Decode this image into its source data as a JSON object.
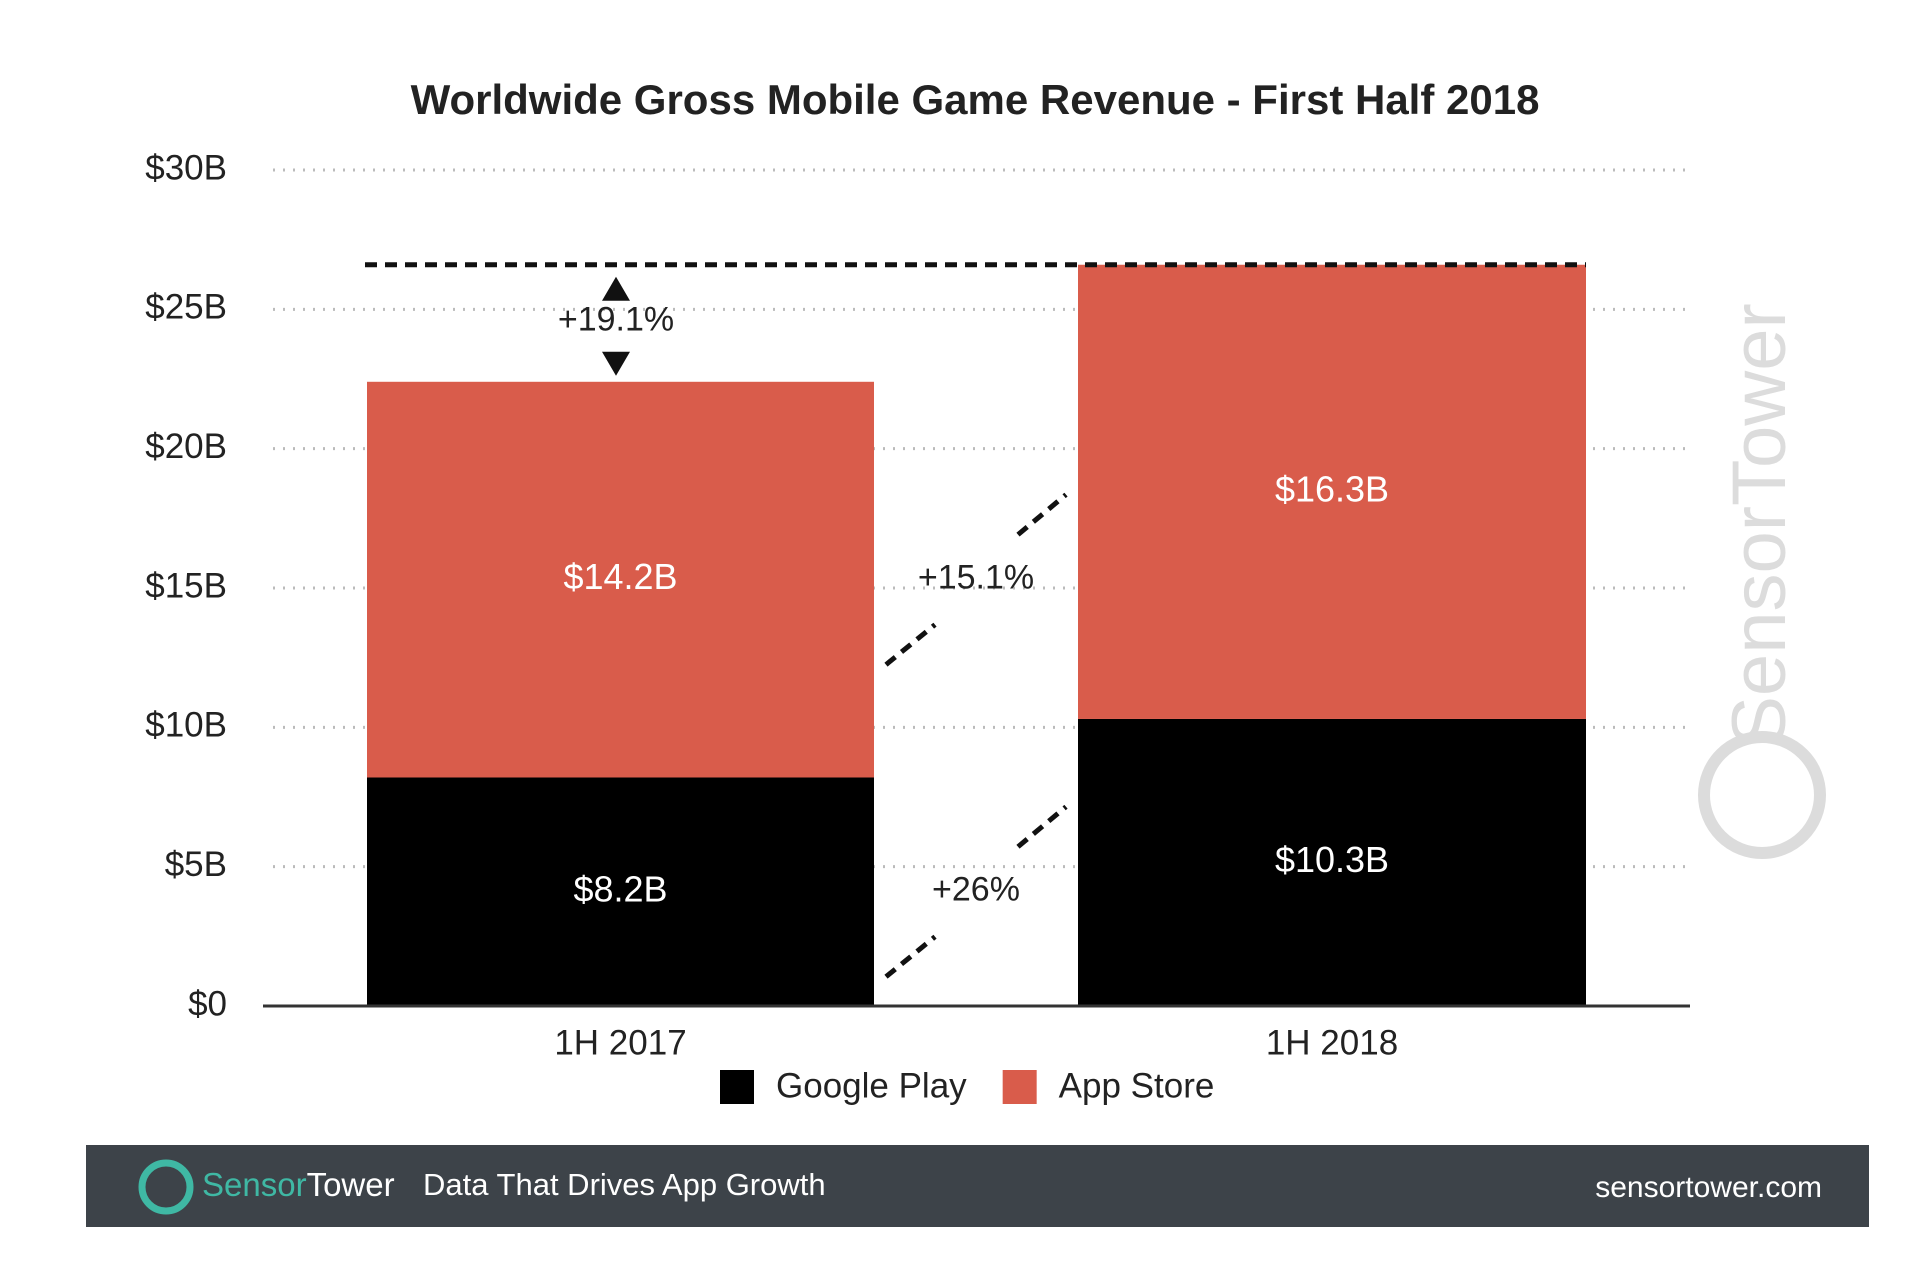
{
  "chart_data": {
    "type": "stacked_bar",
    "title": "Worldwide Gross Mobile Game Revenue - First Half 2018",
    "categories": [
      "1H 2017",
      "1H 2018"
    ],
    "series": [
      {
        "name": "Google Play",
        "color": "#000000",
        "values": [
          8.2,
          10.3
        ],
        "value_labels": [
          "$8.2B",
          "$10.3B"
        ]
      },
      {
        "name": "App Store",
        "color": "#d95c4b",
        "values": [
          14.2,
          16.3
        ],
        "value_labels": [
          "$14.2B",
          "$16.3B"
        ]
      }
    ],
    "ylim": [
      0,
      30
    ],
    "yticks": [
      {
        "value": 0,
        "label": "$0"
      },
      {
        "value": 5,
        "label": "$5B"
      },
      {
        "value": 10,
        "label": "$10B"
      },
      {
        "value": 15,
        "label": "$15B"
      },
      {
        "value": 20,
        "label": "$20B"
      },
      {
        "value": 25,
        "label": "$25B"
      },
      {
        "value": 30,
        "label": "$30B"
      }
    ],
    "grid": true,
    "annotations": [
      "+19.1%",
      "+15.1%",
      "+26%"
    ],
    "watermark": "SensorTower"
  },
  "footer": {
    "brand_first": "Sensor",
    "brand_second": "Tower",
    "tagline": "Data That Drives App Growth",
    "url": "sensortower.com"
  }
}
